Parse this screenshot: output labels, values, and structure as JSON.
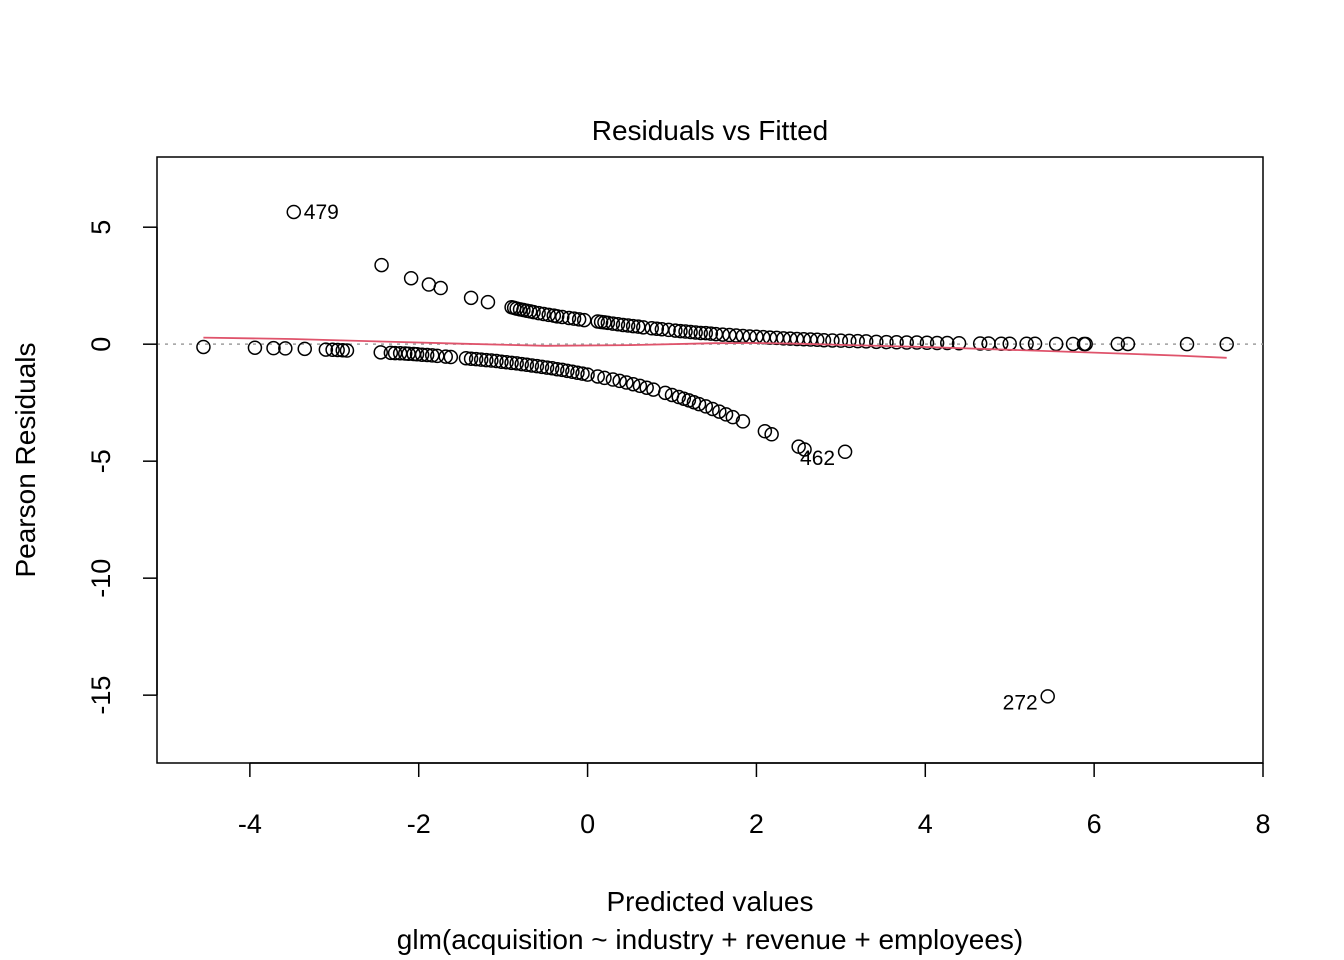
{
  "chart_data": {
    "type": "scatter",
    "title": "Residuals vs Fitted",
    "xlabel": "Predicted values",
    "subtitle": "glm(acquisition ~ industry + revenue + employees)",
    "ylabel": "Pearson Residuals",
    "xlim": [
      -5.1,
      8.0
    ],
    "ylim": [
      -17.9,
      8.0
    ],
    "x_ticks": [
      "-4",
      "-2",
      "0",
      "2",
      "4",
      "6",
      "8"
    ],
    "x_tick_values": [
      -4,
      -2,
      0,
      2,
      4,
      6,
      8
    ],
    "y_ticks": [
      "5",
      "0",
      "-5",
      "-10",
      "-15"
    ],
    "y_tick_values": [
      5,
      0,
      -5,
      -10,
      -15
    ],
    "grid": false,
    "zero_reference_line": true,
    "smooth_color": "#DF536B",
    "point_color": "#000000",
    "smooth_line": [
      [
        -4.55,
        0.28
      ],
      [
        -3.5,
        0.22
      ],
      [
        -2.5,
        0.12
      ],
      [
        -1.5,
        0.02
      ],
      [
        -0.5,
        -0.07
      ],
      [
        0.5,
        -0.04
      ],
      [
        1.5,
        0.04
      ],
      [
        2.0,
        0.05
      ],
      [
        2.5,
        0.02
      ],
      [
        3.0,
        -0.03
      ],
      [
        4.0,
        -0.12
      ],
      [
        5.0,
        -0.24
      ],
      [
        6.0,
        -0.36
      ],
      [
        7.0,
        -0.49
      ],
      [
        7.57,
        -0.58
      ]
    ],
    "labelled_points": [
      {
        "label": "479",
        "x": -3.48,
        "y": 5.65
      },
      {
        "label": "462",
        "x": 3.05,
        "y": -4.6
      },
      {
        "label": "272",
        "x": 5.45,
        "y": -15.05
      }
    ],
    "upper_branch": {
      "x": [
        -2.44,
        -2.09,
        -1.88,
        -1.74,
        -1.38,
        -1.18,
        -0.9,
        -0.87,
        -0.84,
        -0.8,
        -0.76,
        -0.72,
        -0.68,
        -0.64,
        -0.58,
        -0.52,
        -0.46,
        -0.4,
        -0.36,
        -0.3,
        -0.22,
        -0.16,
        -0.1,
        -0.04,
        0.12,
        0.16,
        0.2,
        0.24,
        0.3,
        0.36,
        0.42,
        0.48,
        0.54,
        0.6,
        0.66,
        0.76,
        0.82,
        0.88,
        0.96,
        1.04,
        1.1,
        1.16,
        1.22,
        1.28,
        1.34,
        1.4,
        1.46,
        1.52,
        1.6,
        1.68,
        1.76,
        1.84,
        1.92,
        2.0,
        2.08,
        2.16,
        2.24,
        2.32,
        2.4,
        2.48,
        2.56,
        2.64,
        2.72,
        2.8,
        2.9,
        3.0,
        3.1,
        3.2,
        3.3,
        3.42,
        3.54,
        3.66,
        3.78,
        3.9,
        4.02,
        4.14,
        4.26,
        4.4,
        4.65,
        4.75,
        4.9,
        5.0,
        5.2,
        5.3,
        5.55,
        5.75,
        5.88,
        5.9,
        6.28,
        6.4,
        7.1,
        7.57
      ],
      "y": [
        3.38,
        2.82,
        2.55,
        2.4,
        1.98,
        1.8,
        1.58,
        1.55,
        1.52,
        1.49,
        1.46,
        1.43,
        1.4,
        1.37,
        1.33,
        1.29,
        1.25,
        1.22,
        1.19,
        1.16,
        1.12,
        1.09,
        1.06,
        1.03,
        0.97,
        0.95,
        0.93,
        0.91,
        0.88,
        0.85,
        0.82,
        0.8,
        0.77,
        0.75,
        0.72,
        0.68,
        0.66,
        0.64,
        0.61,
        0.58,
        0.56,
        0.54,
        0.52,
        0.5,
        0.48,
        0.47,
        0.45,
        0.43,
        0.41,
        0.39,
        0.37,
        0.35,
        0.33,
        0.32,
        0.3,
        0.28,
        0.27,
        0.25,
        0.24,
        0.22,
        0.21,
        0.2,
        0.19,
        0.17,
        0.16,
        0.15,
        0.14,
        0.13,
        0.12,
        0.1,
        0.09,
        0.08,
        0.07,
        0.07,
        0.06,
        0.05,
        0.05,
        0.04,
        0.03,
        0.03,
        0.02,
        0.02,
        0.02,
        0.02,
        0.01,
        0.01,
        0.01,
        0.01,
        0.01,
        0.01,
        0.0,
        0.0
      ]
    },
    "lower_branch": {
      "x": [
        -4.55,
        -3.94,
        -3.72,
        -3.58,
        -3.35,
        -3.1,
        -3.02,
        -2.96,
        -2.9,
        -2.85,
        -2.45,
        -2.33,
        -2.28,
        -2.22,
        -2.16,
        -2.12,
        -2.06,
        -2.02,
        -1.96,
        -1.9,
        -1.84,
        -1.78,
        -1.68,
        -1.62,
        -1.44,
        -1.38,
        -1.32,
        -1.26,
        -1.2,
        -1.14,
        -1.08,
        -1.02,
        -0.96,
        -0.9,
        -0.84,
        -0.78,
        -0.72,
        -0.66,
        -0.6,
        -0.54,
        -0.48,
        -0.42,
        -0.36,
        -0.3,
        -0.24,
        -0.18,
        -0.12,
        -0.06,
        0.0,
        0.12,
        0.2,
        0.3,
        0.38,
        0.46,
        0.54,
        0.62,
        0.7,
        0.78,
        0.92,
        1.0,
        1.08,
        1.14,
        1.2,
        1.26,
        1.32,
        1.4,
        1.48,
        1.56,
        1.64,
        1.72,
        1.84,
        2.1,
        2.18,
        2.5,
        2.57
      ],
      "y": [
        -0.12,
        -0.15,
        -0.17,
        -0.18,
        -0.2,
        -0.23,
        -0.24,
        -0.25,
        -0.26,
        -0.27,
        -0.35,
        -0.37,
        -0.38,
        -0.39,
        -0.4,
        -0.41,
        -0.42,
        -0.43,
        -0.45,
        -0.46,
        -0.48,
        -0.5,
        -0.53,
        -0.55,
        -0.6,
        -0.62,
        -0.64,
        -0.66,
        -0.68,
        -0.7,
        -0.72,
        -0.75,
        -0.77,
        -0.8,
        -0.82,
        -0.85,
        -0.88,
        -0.91,
        -0.94,
        -0.97,
        -1.0,
        -1.03,
        -1.07,
        -1.1,
        -1.14,
        -1.18,
        -1.22,
        -1.26,
        -1.3,
        -1.38,
        -1.44,
        -1.51,
        -1.57,
        -1.64,
        -1.71,
        -1.78,
        -1.86,
        -1.94,
        -2.08,
        -2.17,
        -2.26,
        -2.33,
        -2.4,
        -2.48,
        -2.56,
        -2.66,
        -2.77,
        -2.88,
        -3.0,
        -3.12,
        -3.3,
        -3.72,
        -3.85,
        -4.38,
        -4.5
      ]
    }
  }
}
